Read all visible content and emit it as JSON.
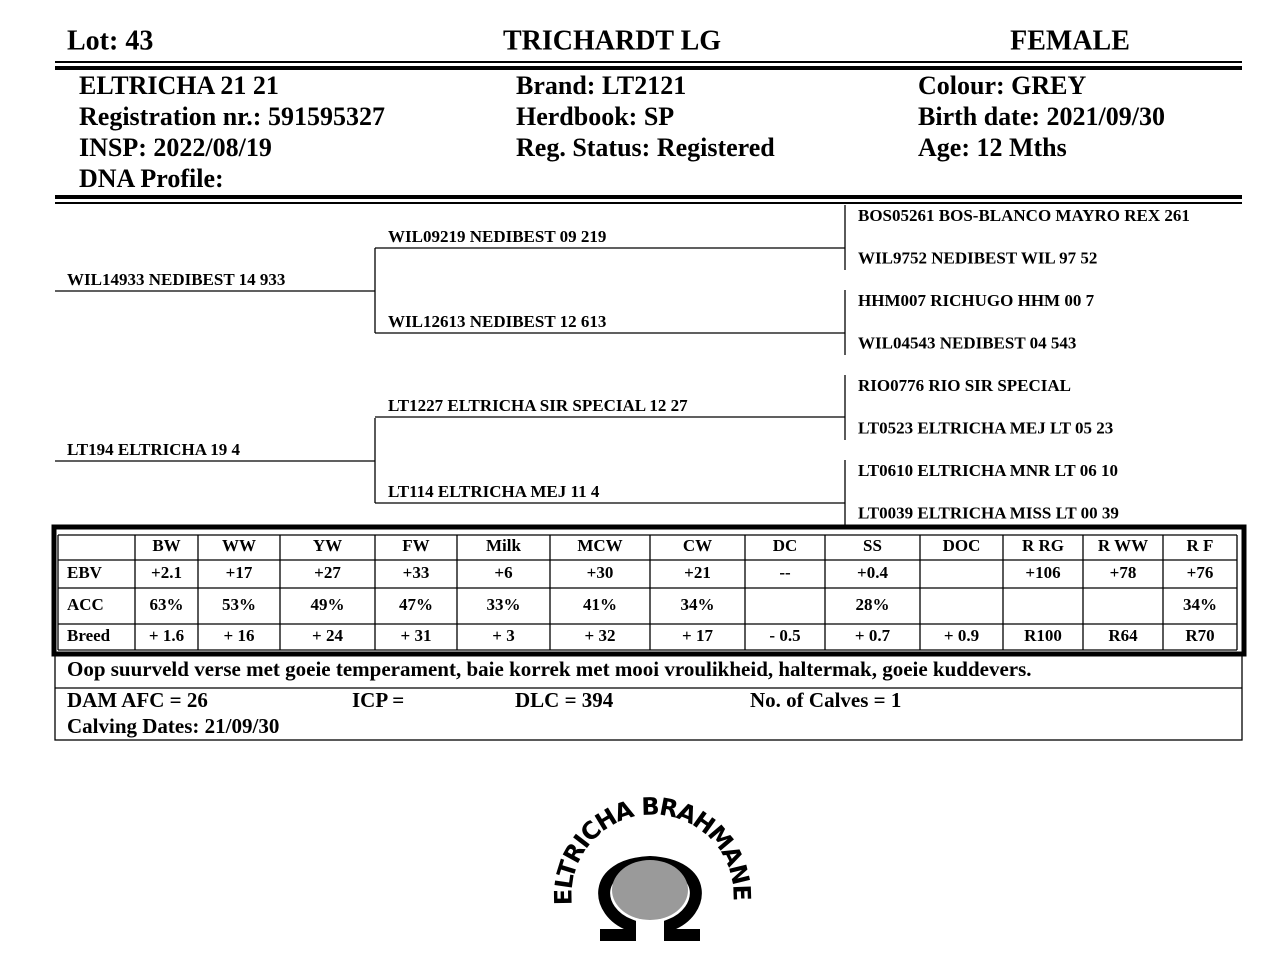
{
  "header": {
    "lot": "Lot:  43",
    "name": "TRICHARDT LG",
    "sex": "FEMALE"
  },
  "info": {
    "col1": [
      "ELTRICHA 21 21",
      "Registration nr.: 591595327",
      "INSP: 2022/08/19",
      "DNA Profile:"
    ],
    "col2": [
      "Brand:  LT2121",
      "Herdbook: SP",
      "Reg. Status: Registered"
    ],
    "col3": [
      "Colour:  GREY",
      "Birth date:  2021/09/30",
      "Age: 12 Mths"
    ]
  },
  "pedigree": {
    "parents": [
      "WIL14933 NEDIBEST 14 933",
      "LT194 ELTRICHA 19 4"
    ],
    "grandparents": [
      "WIL09219 NEDIBEST 09 219",
      "WIL12613 NEDIBEST 12 613",
      "LT1227 ELTRICHA SIR SPECIAL 12 27",
      "LT114 ELTRICHA MEJ 11 4"
    ],
    "great_grandparents": [
      "BOS05261 BOS-BLANCO MAYRO REX 261",
      "WIL9752 NEDIBEST WIL 97 52",
      "HHM007 RICHUGO HHM 00 7",
      "WIL04543 NEDIBEST 04 543",
      "RIO0776 RIO SIR SPECIAL",
      "LT0523 ELTRICHA MEJ LT 05 23",
      "LT0610 ELTRICHA MNR LT 06 10",
      "LT0039 ELTRICHA MISS LT 00 39"
    ]
  },
  "table": {
    "columns": [
      "BW",
      "WW",
      "YW",
      "FW",
      "Milk",
      "MCW",
      "CW",
      "DC",
      "SS",
      "DOC",
      "R RG",
      "R WW",
      "R F"
    ],
    "rows": [
      {
        "label": "EBV",
        "cells": [
          "+2.1",
          "+17",
          "+27",
          "+33",
          "+6",
          "+30",
          "+21",
          "--",
          "+0.4",
          null,
          "+106",
          "+78",
          "+76"
        ]
      },
      {
        "label": "ACC",
        "cells": [
          "63%",
          "53%",
          "49%",
          "47%",
          "33%",
          "41%",
          "34%",
          null,
          "28%",
          null,
          null,
          null,
          "34%"
        ]
      },
      {
        "label": "Breed",
        "cells": [
          "+ 1.6",
          "+ 16",
          "+ 24",
          "+ 31",
          "+ 3",
          "+ 32",
          "+ 17",
          "- 0.5",
          "+ 0.7",
          "+ 0.9",
          "R100",
          "R64",
          "R70"
        ]
      }
    ]
  },
  "comment": "Oop suurveld verse met goeie temperament, baie korrek met mooi vroulikheid, haltermak, goeie kuddevers.",
  "dam_info": {
    "afc": "DAM AFC = 26",
    "icp": "ICP =",
    "dlc": "DLC = 394",
    "calves": "No. of Calves = 1",
    "calving_dates": "Calving Dates: 21/09/30"
  },
  "logo": {
    "text": "ELTRICHA BRAHMANE"
  }
}
